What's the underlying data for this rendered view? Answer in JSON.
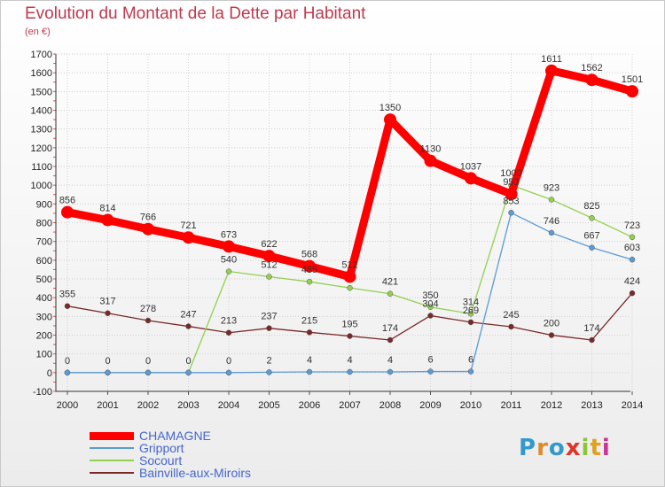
{
  "chart_data": {
    "type": "line",
    "title": "Evolution du Montant de la Dette par Habitant",
    "subtitle": "(en €)",
    "x": [
      "2000",
      "2001",
      "2002",
      "2003",
      "2004",
      "2005",
      "2006",
      "2007",
      "2008",
      "2009",
      "2010",
      "2011",
      "2012",
      "2013",
      "2014"
    ],
    "ylim": [
      -100,
      1700
    ],
    "yticks": [
      -100,
      0,
      100,
      200,
      300,
      400,
      500,
      600,
      700,
      800,
      900,
      1000,
      1100,
      1200,
      1300,
      1400,
      1500,
      1600,
      1700
    ],
    "grid": true,
    "legend_position": "bottom-left",
    "series": [
      {
        "name": "CHAMAGNE",
        "color": "#ff0000",
        "values": [
          856,
          814,
          766,
          721,
          673,
          622,
          568,
          512,
          1350,
          1130,
          1037,
          953,
          1611,
          1562,
          1501
        ],
        "labels": [
          "856",
          "814",
          "766",
          "721",
          "673",
          "622",
          "568",
          "512",
          "1350",
          "1130",
          "1037",
          "953",
          "1611",
          "1562",
          "1501"
        ]
      },
      {
        "name": "Gripport",
        "color": "#5b9bd5",
        "values": [
          0,
          0,
          0,
          0,
          0,
          2,
          4,
          4,
          4,
          6,
          6,
          853,
          746,
          667,
          603
        ],
        "labels": [
          "",
          "",
          "",
          "",
          "0",
          "2",
          "4",
          "4",
          "4",
          "6",
          "6",
          "853",
          "746",
          "667",
          "603"
        ]
      },
      {
        "name": "Socourt",
        "color": "#92d050",
        "values": [
          0,
          0,
          0,
          0,
          540,
          512,
          485,
          452,
          421,
          350,
          314,
          1000,
          923,
          825,
          723
        ],
        "labels": [
          "0",
          "0",
          "0",
          "0",
          "540",
          "512",
          "485",
          "",
          "421",
          "350",
          "314",
          "1000",
          "923",
          "825",
          "723"
        ]
      },
      {
        "name": "Bainville-aux-Miroirs",
        "color": "#7a2828",
        "values": [
          355,
          317,
          278,
          247,
          213,
          237,
          215,
          195,
          174,
          304,
          269,
          245,
          200,
          174,
          424
        ],
        "labels": [
          "355",
          "317",
          "278",
          "247",
          "213",
          "237",
          "215",
          "195",
          "174",
          "304",
          "269",
          "245",
          "200",
          "174",
          "424"
        ]
      }
    ]
  },
  "branding": {
    "logo_text": "Proxiti",
    "logo_colors": [
      "#3399cc",
      "#e08a2a",
      "#3399cc",
      "#e0332a",
      "#8cc43a",
      "#e0a020",
      "#cc3399"
    ]
  }
}
